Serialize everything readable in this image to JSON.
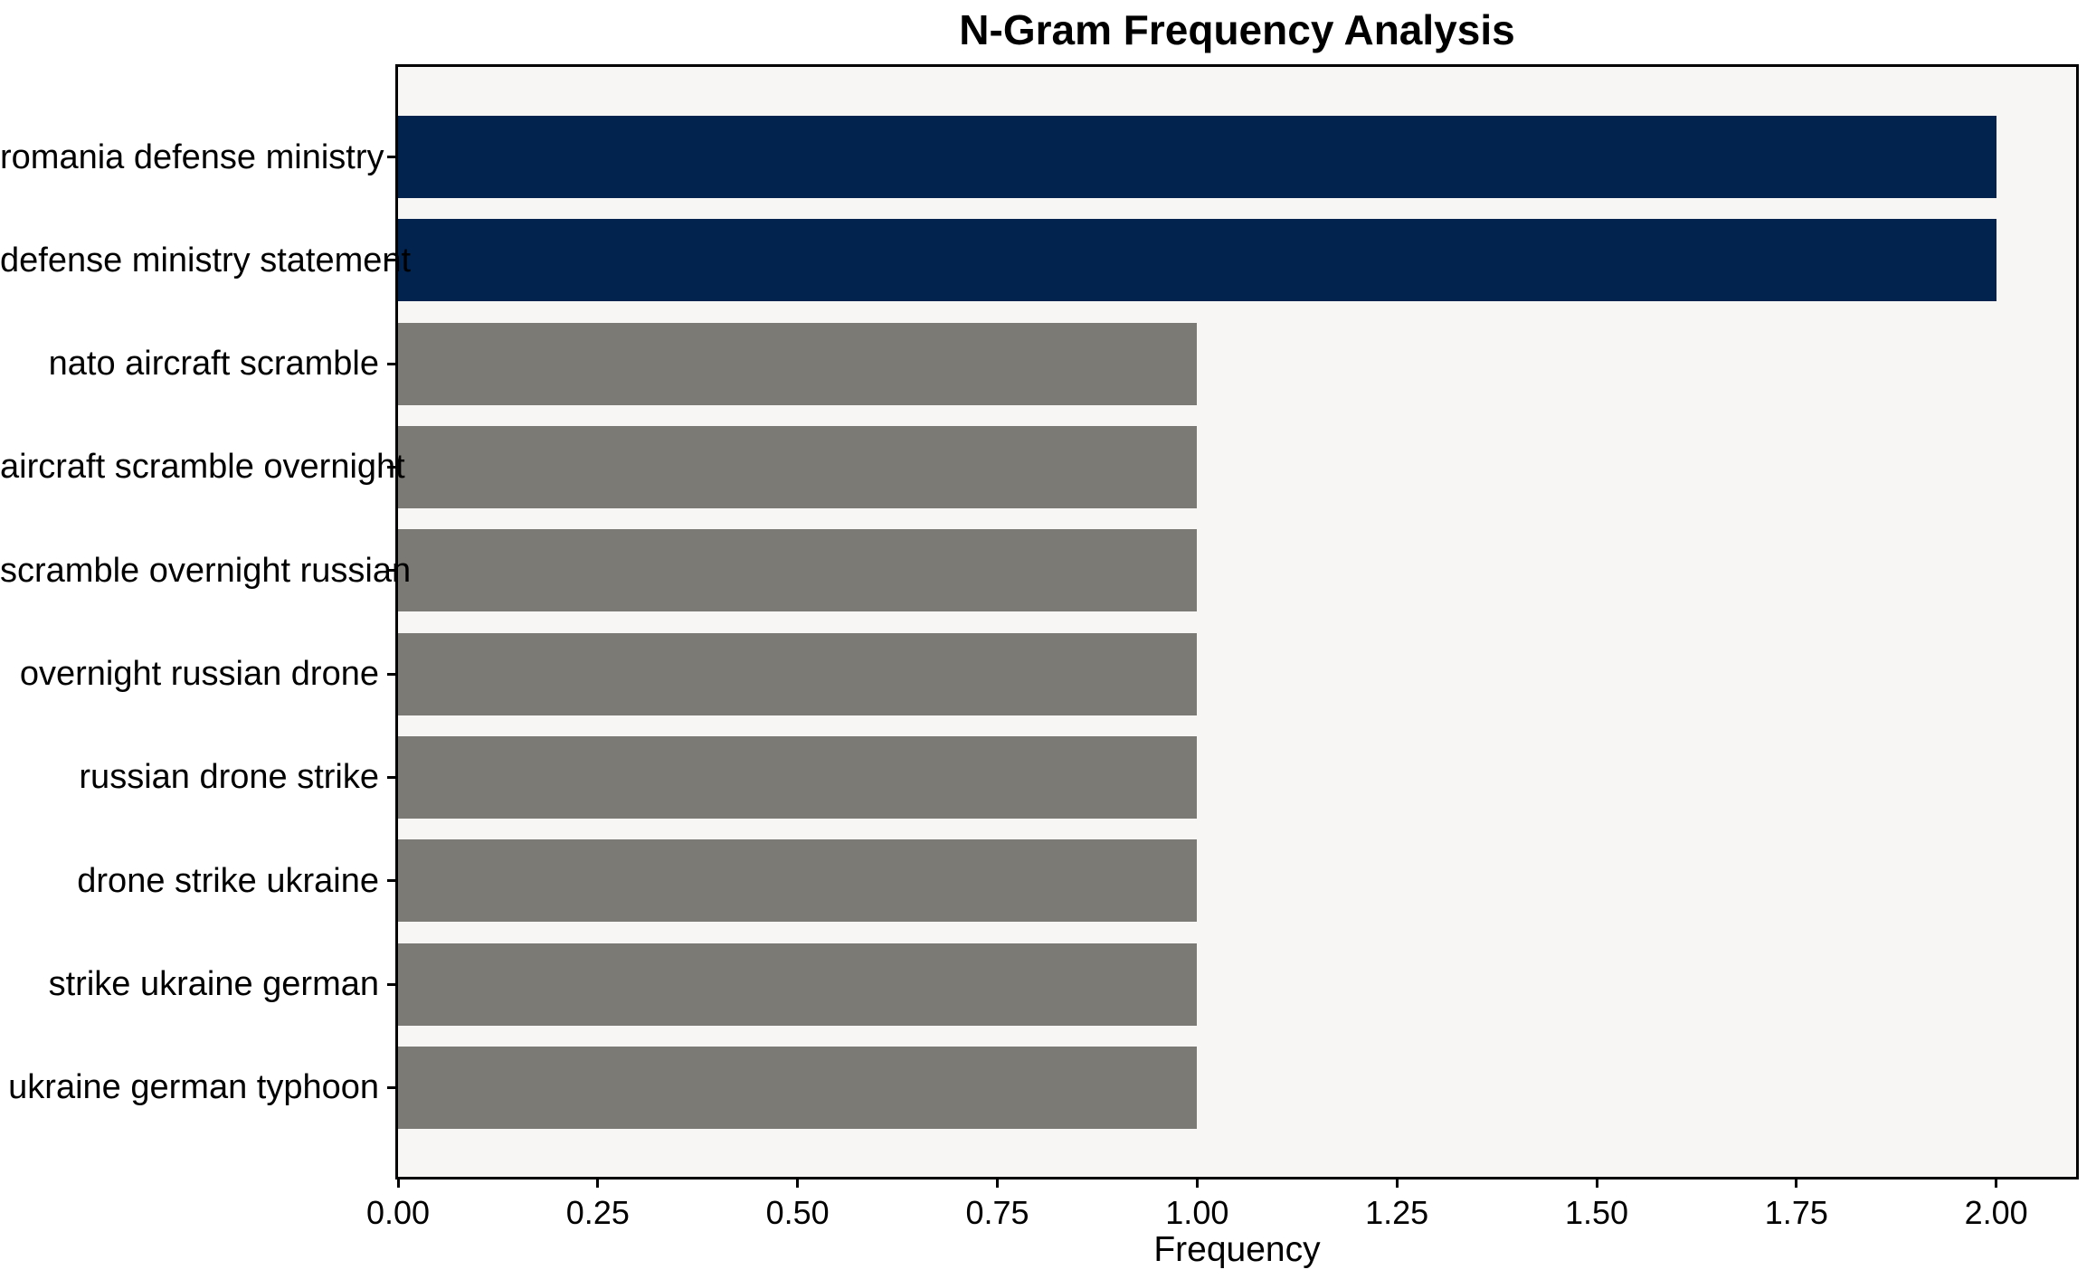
{
  "chart_data": {
    "type": "bar",
    "orientation": "horizontal",
    "title": "N-Gram Frequency Analysis",
    "xlabel": "Frequency",
    "ylabel": "",
    "categories": [
      "romania defense ministry",
      "defense ministry statement",
      "nato aircraft scramble",
      "aircraft scramble overnight",
      "scramble overnight russian",
      "overnight russian drone",
      "russian drone strike",
      "drone strike ukraine",
      "strike ukraine german",
      "ukraine german typhoon"
    ],
    "values": [
      2,
      2,
      1,
      1,
      1,
      1,
      1,
      1,
      1,
      1
    ],
    "bar_colors": [
      "#02234e",
      "#02234e",
      "#7c7a75",
      "#7c7a75",
      "#7c7a75",
      "#7c7a75",
      "#7c7a75",
      "#7c7a75",
      "#7c7a75",
      "#7c7a75"
    ],
    "highlight_color": "#02234e",
    "default_color": "#7c7a75",
    "xlim": [
      0,
      2.1
    ],
    "x_tick_values": [
      0,
      0.25,
      0.5,
      0.75,
      1.0,
      1.25,
      1.5,
      1.75,
      2.0
    ],
    "x_tick_labels": [
      "0.00",
      "0.25",
      "0.50",
      "0.75",
      "1.00",
      "1.25",
      "1.50",
      "1.75",
      "2.00"
    ],
    "grid": false,
    "legend": null,
    "plot_background": "#f7f6f5",
    "figure_background": "#ffffff",
    "axis_color": "#000000",
    "text_color": "#000000"
  }
}
